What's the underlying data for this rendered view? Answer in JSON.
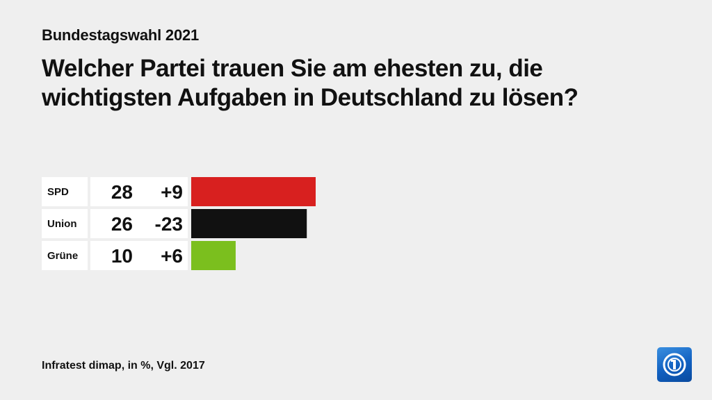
{
  "header": {
    "kicker": "Bundestagswahl 2021",
    "title": "Welcher Partei trauen Sie am ehesten zu, die wichtigsten Aufgaben in Deutschland zu lösen?"
  },
  "footer": {
    "source": "Infratest dimap, in %, Vgl. 2017"
  },
  "logo": {
    "icon": "tagesschau-logo-icon",
    "color": "#1a6fd0"
  },
  "chart_data": {
    "type": "bar",
    "orientation": "horizontal",
    "categories": [
      "SPD",
      "Union",
      "Grüne"
    ],
    "values": [
      28,
      26,
      10
    ],
    "changes": [
      "+9",
      "-23",
      "+6"
    ],
    "colors": [
      "#d8201f",
      "#111111",
      "#7bbf1e"
    ],
    "xlim": [
      0,
      28
    ],
    "grid": false
  }
}
